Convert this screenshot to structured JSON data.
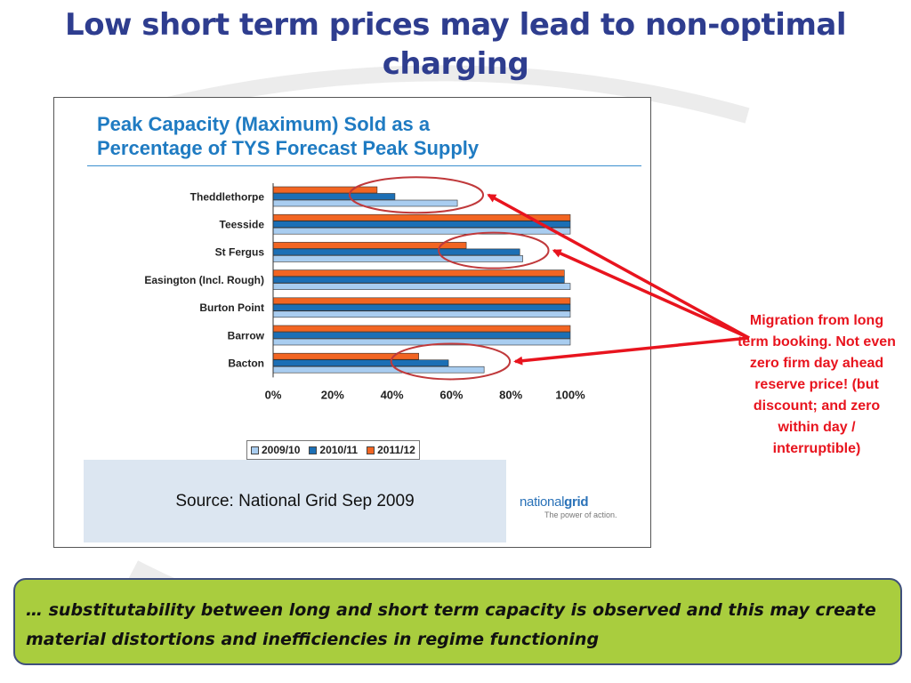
{
  "slide": {
    "title": "Low short term prices may lead to non-optimal charging",
    "annotation": "Migration from long term booking. Not even zero firm day ahead reserve price! (but discount; and zero within day / interruptible)",
    "callout": "… substitutability between long and short term capacity is observed and this may create material distortions and inefficiencies in regime functioning"
  },
  "source": {
    "text": "Source: National Grid Sep 2009",
    "logo_word_light": "national",
    "logo_word_bold": "grid",
    "logo_tagline": "The power of action."
  },
  "chart_data": {
    "type": "bar",
    "orientation": "horizontal",
    "title": "Peak Capacity (Maximum) Sold as a Percentage of TYS Forecast Peak Supply",
    "title_lines": [
      "Peak Capacity (Maximum) Sold as a",
      "Percentage of TYS Forecast Peak Supply"
    ],
    "categories": [
      "Theddlethorpe",
      "Teesside",
      "St Fergus",
      "Easington (Incl. Rough)",
      "Burton Point",
      "Barrow",
      "Bacton"
    ],
    "series": [
      {
        "name": "2011/12",
        "color": "#f26522",
        "values": [
          35,
          100,
          65,
          98,
          100,
          100,
          49
        ]
      },
      {
        "name": "2010/11",
        "color": "#1c6fb5",
        "values": [
          41,
          100,
          83,
          98,
          100,
          100,
          59
        ]
      },
      {
        "name": "2009/10",
        "color": "#a9cdf0",
        "values": [
          62,
          100,
          84,
          100,
          100,
          100,
          71
        ]
      }
    ],
    "legend_order": [
      "2009/10",
      "2010/11",
      "2011/12"
    ],
    "x_ticks": [
      "0%",
      "20%",
      "40%",
      "60%",
      "80%",
      "100%"
    ],
    "xlim": [
      0,
      100
    ],
    "highlighted_categories": [
      "Theddlethorpe",
      "St Fergus",
      "Bacton"
    ],
    "annotation_color": "#e8141e",
    "grid": false,
    "legend_position": "bottom"
  }
}
